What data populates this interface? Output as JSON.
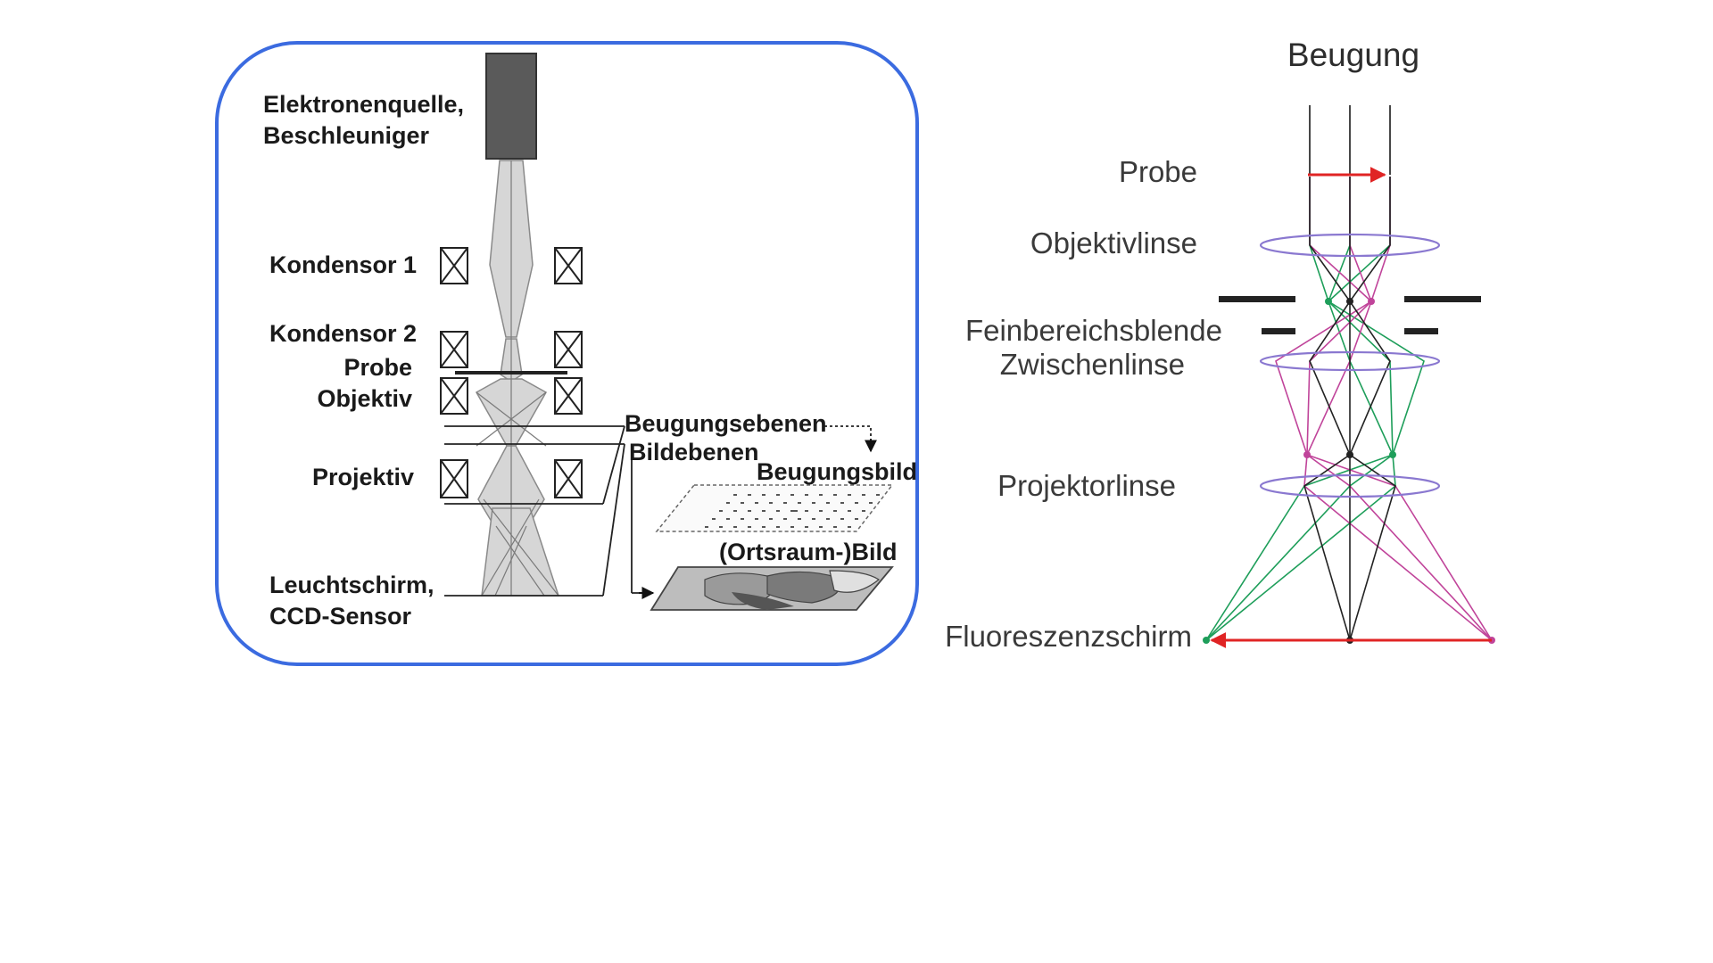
{
  "left_diagram": {
    "labels": {
      "source": [
        "Elektronenquelle,",
        "Beschleuniger"
      ],
      "condenser1": "Kondensor 1",
      "condenser2": "Kondensor 2",
      "sample": "Probe",
      "objective": "Objektiv",
      "projective": "Projektiv",
      "screen": [
        "Leuchtschirm,",
        "CCD-Sensor"
      ],
      "diffraction_planes": "Beugungsebenen",
      "image_planes": "Bildebenen",
      "diffraction_image": "Beugungsbild",
      "real_space_image": "(Ortsraum-)Bild"
    },
    "frame_color": "#3b6be0"
  },
  "right_diagram": {
    "title": "Beugung",
    "labels": {
      "sample": "Probe",
      "objective_lens": "Objektivlinse",
      "aperture": "Feinbereichsblende",
      "intermediate_lens": "Zwischenlinse",
      "projector_lens": "Projektorlinse",
      "screen": "Fluoreszenzschirm"
    },
    "colors": {
      "green": "#1e9e5a",
      "magenta": "#c0449a",
      "black": "#222222",
      "red": "#e02424",
      "lens": "#8a78d0"
    }
  }
}
